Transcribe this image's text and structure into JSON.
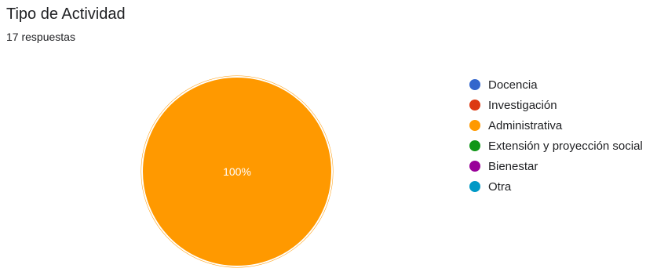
{
  "title": "Tipo de Actividad",
  "subtitle": "17 respuestas",
  "chart_data": {
    "type": "pie",
    "title": "Tipo de Actividad",
    "total_label": "17 respuestas",
    "categories": [
      "Docencia",
      "Investigación",
      "Administrativa",
      "Extensión y proyección social",
      "Bienestar",
      "Otra"
    ],
    "values": [
      0,
      0,
      100,
      0,
      0,
      0
    ],
    "unit": "%",
    "slice_labels": [
      "",
      "",
      "100%",
      "",
      "",
      ""
    ],
    "colors": [
      "#3366cc",
      "#dc3912",
      "#ff9900",
      "#109618",
      "#990099",
      "#0099c6"
    ],
    "legend_position": "right"
  }
}
